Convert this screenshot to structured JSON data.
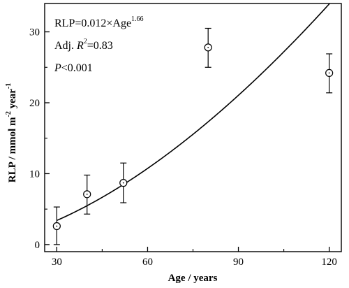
{
  "chart_data": {
    "type": "scatter",
    "title": "",
    "xlabel": "Age / years",
    "ylabel": {
      "base": "RLP / mmol m",
      "sup1": "-2",
      "mid": " year",
      "sup2": "-1"
    },
    "xlim": [
      26,
      124
    ],
    "ylim": [
      -1,
      34
    ],
    "x_ticks": [
      30,
      60,
      90,
      120
    ],
    "y_ticks": [
      0,
      10,
      20,
      30
    ],
    "x_minor_step": 15,
    "y_minor_step": 5,
    "grid": false,
    "series": [
      {
        "marker": "open-circle",
        "points": [
          {
            "x": 30,
            "y": 2.6,
            "err_low": 2.6,
            "err_high": 2.7
          },
          {
            "x": 40,
            "y": 7.1,
            "err_low": 2.8,
            "err_high": 2.7
          },
          {
            "x": 52,
            "y": 8.7,
            "err_low": 2.8,
            "err_high": 2.8
          },
          {
            "x": 80,
            "y": 27.8,
            "err_low": 2.8,
            "err_high": 2.7
          },
          {
            "x": 120,
            "y": 24.2,
            "err_low": 2.8,
            "err_high": 2.7
          }
        ]
      }
    ],
    "fit": {
      "type": "power",
      "a": 0.012,
      "b": 1.66,
      "x_range": [
        30,
        124
      ]
    },
    "annotations": {
      "equation_base": "RLP=0.012×Age",
      "equation_exp": "1.66",
      "r2_prefix": "Adj. ",
      "r2_var": "R",
      "r2_sup": "2",
      "r2_value": "=0.83",
      "p_var": "P",
      "p_value": "<0.001"
    }
  }
}
